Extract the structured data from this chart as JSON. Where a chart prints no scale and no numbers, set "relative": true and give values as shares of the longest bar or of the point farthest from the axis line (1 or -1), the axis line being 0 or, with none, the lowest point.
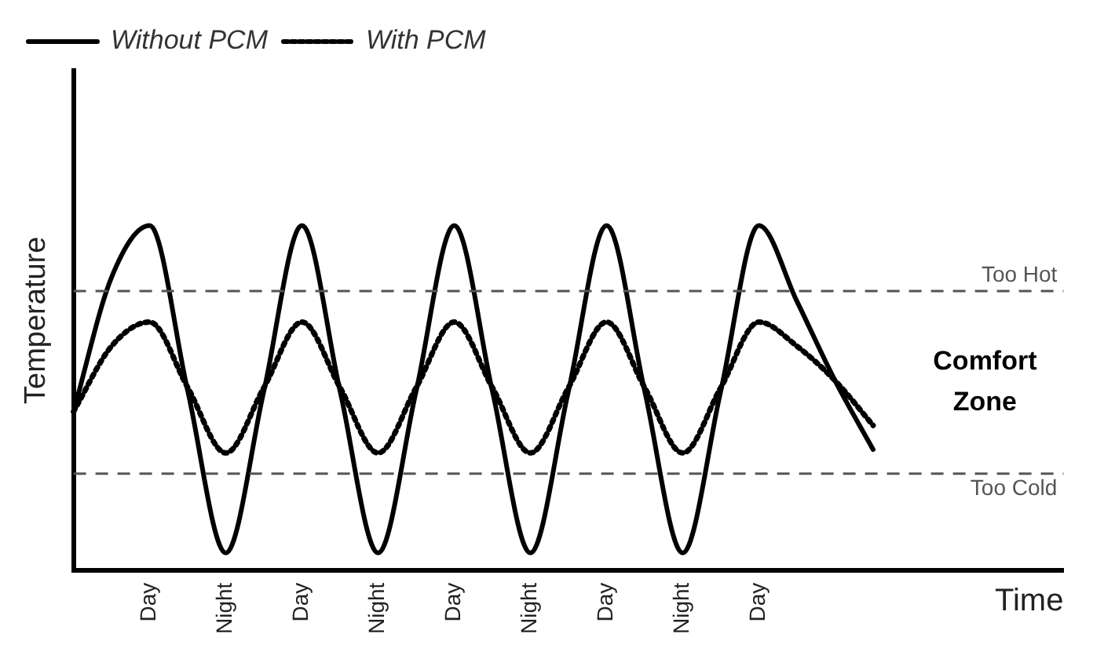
{
  "chart_data": {
    "type": "line",
    "relative": true,
    "xlabel": "Time",
    "ylabel": "Temperature",
    "categories": [
      null,
      null,
      "Day",
      null,
      "Night",
      null,
      "Day",
      null,
      "Night",
      null,
      "Day",
      null,
      "Night",
      null,
      "Day",
      null,
      "Night",
      null,
      "Day",
      null,
      null,
      null,
      null,
      null,
      null,
      null,
      null
    ],
    "series": [
      {
        "name": "Without PCM",
        "color": "#000000",
        "line_style": "solid",
        "values": [
          0.46,
          0.85,
          1.0,
          0.52,
          0.05,
          0.52,
          1.0,
          0.52,
          0.05,
          0.52,
          1.0,
          0.52,
          0.05,
          0.52,
          1.0,
          0.52,
          0.05,
          0.52,
          1.0,
          0.78,
          0.55,
          0.35,
          null,
          null,
          null,
          null,
          null
        ]
      },
      {
        "name": "With PCM",
        "color": "#000000",
        "line_style": "dotted",
        "values": [
          0.46,
          0.65,
          0.72,
          0.53,
          0.34,
          0.53,
          0.72,
          0.53,
          0.34,
          0.53,
          0.72,
          0.53,
          0.34,
          0.53,
          0.72,
          0.53,
          0.34,
          0.53,
          0.72,
          0.65,
          0.55,
          0.42,
          null,
          null,
          null,
          null,
          null
        ]
      }
    ],
    "ref_lines": [
      {
        "axis": "y",
        "value": 0.81,
        "label": "Too Hot",
        "color": "#555555",
        "line_style": "dashed"
      },
      {
        "axis": "y",
        "value": 0.28,
        "label": "Too Cold",
        "color": "#555555",
        "line_style": "dashed"
      }
    ],
    "annotations": [
      "Comfort Zone"
    ],
    "marker": "none",
    "grid": false,
    "legend": "top left"
  }
}
